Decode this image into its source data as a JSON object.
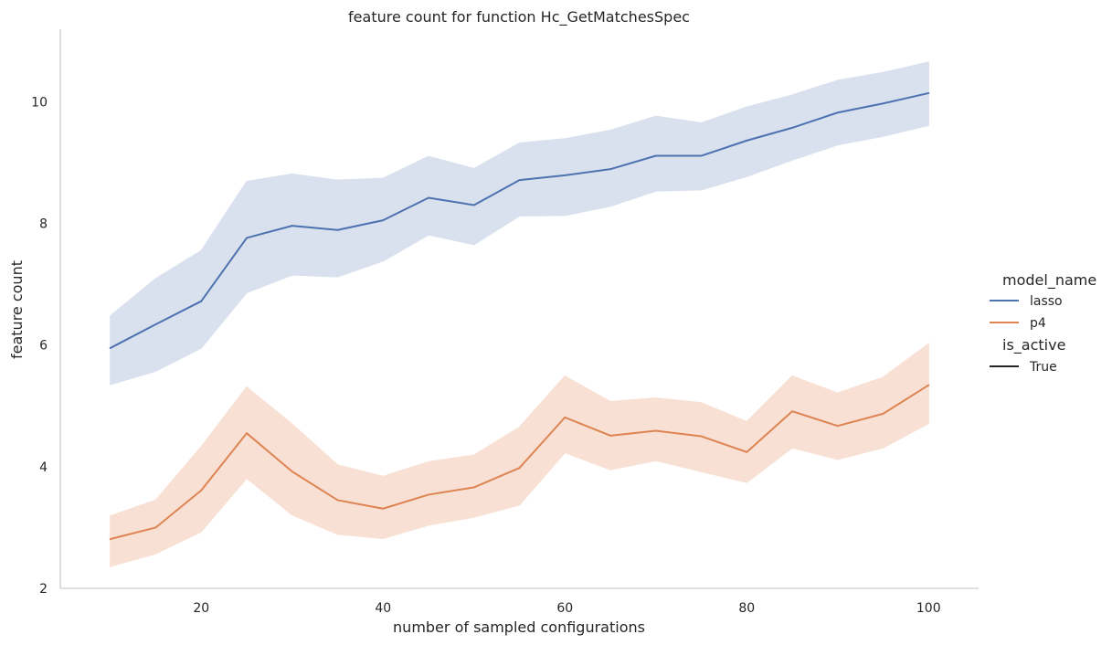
{
  "chart_data": {
    "type": "line",
    "title": "feature count for function Hc_GetMatchesSpec",
    "xlabel": "number of sampled configurations",
    "ylabel": "feature count",
    "xlim": [
      4.5,
      105.5
    ],
    "ylim": [
      2,
      11.1
    ],
    "xticks": [
      20,
      40,
      60,
      80,
      100
    ],
    "yticks": [
      2,
      4,
      6,
      8,
      10
    ],
    "grid": false,
    "x": [
      10,
      15,
      20,
      25,
      30,
      35,
      40,
      45,
      50,
      55,
      60,
      65,
      70,
      75,
      80,
      85,
      90,
      95,
      100
    ],
    "series": [
      {
        "name": "lasso",
        "color": "#4c72b0",
        "band_color": "#dae1ee",
        "values": [
          5.95,
          6.34,
          6.72,
          7.76,
          7.96,
          7.89,
          8.05,
          8.42,
          8.3,
          8.71,
          8.79,
          8.89,
          9.11,
          9.11,
          9.36,
          9.57,
          9.82,
          9.97,
          10.14
        ],
        "ci_low": [
          5.35,
          5.57,
          5.95,
          6.86,
          7.15,
          7.12,
          7.38,
          7.81,
          7.65,
          8.12,
          8.13,
          8.28,
          8.53,
          8.55,
          8.77,
          9.04,
          9.29,
          9.43,
          9.61
        ],
        "ci_high": [
          6.48,
          7.09,
          7.55,
          8.69,
          8.81,
          8.71,
          8.74,
          9.1,
          8.9,
          9.32,
          9.39,
          9.53,
          9.76,
          9.65,
          9.91,
          10.11,
          10.35,
          10.48,
          10.65
        ]
      },
      {
        "name": "p4",
        "color": "#dd8452",
        "band_color": "#f8e0d4",
        "values": [
          2.81,
          3.0,
          3.61,
          4.55,
          3.92,
          3.45,
          3.31,
          3.54,
          3.66,
          3.98,
          4.81,
          4.51,
          4.59,
          4.5,
          4.24,
          4.91,
          4.67,
          4.87,
          5.34
        ],
        "ci_low": [
          2.36,
          2.57,
          2.93,
          3.81,
          3.21,
          2.89,
          2.82,
          3.04,
          3.17,
          3.37,
          4.23,
          3.95,
          4.1,
          3.92,
          3.74,
          4.31,
          4.12,
          4.31,
          4.71
        ],
        "ci_high": [
          3.19,
          3.45,
          4.33,
          5.31,
          4.7,
          4.03,
          3.84,
          4.08,
          4.19,
          4.65,
          5.49,
          5.07,
          5.13,
          5.05,
          4.74,
          5.49,
          5.21,
          5.47,
          6.02
        ]
      }
    ],
    "legend": {
      "placement": "center-right, outside plot",
      "hue_title": "model_name",
      "hue_entries": [
        "lasso",
        "p4"
      ],
      "style_title": "is_active",
      "style_entries": [
        "True"
      ]
    }
  }
}
